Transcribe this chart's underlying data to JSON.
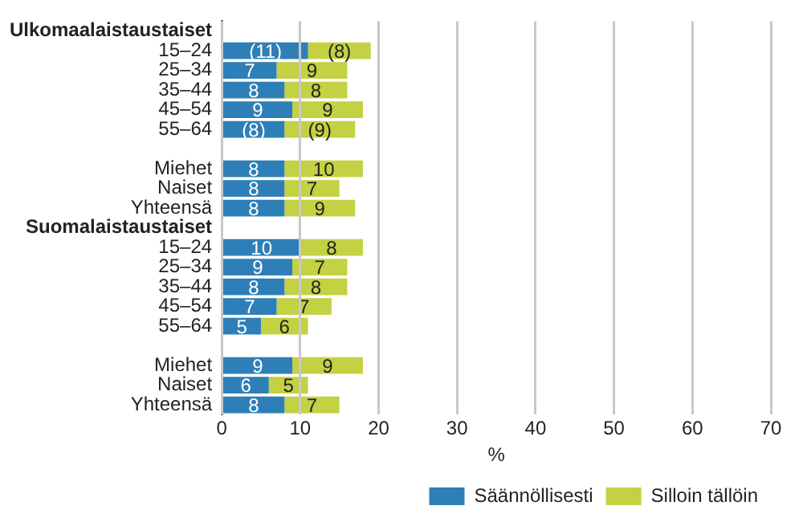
{
  "chart_data": {
    "type": "bar",
    "orientation": "horizontal",
    "stacked": true,
    "categories": [
      "Ulkomaalaistaustaiset",
      "15–24",
      "25–34",
      "35–44",
      "45–54",
      "55–64",
      null,
      "Miehet",
      "Naiset",
      "Yhteensä",
      "Suomalaistaustaiset",
      "15–24",
      "25–34",
      "35–44",
      "45–54",
      "55–64",
      null,
      "Miehet",
      "Naiset",
      "Yhteensä"
    ],
    "series": [
      {
        "name": "Säännöllisesti",
        "color": "#2e7fb8",
        "values": [
          null,
          11,
          7,
          8,
          9,
          8,
          null,
          8,
          8,
          8,
          null,
          10,
          9,
          8,
          7,
          5,
          null,
          9,
          6,
          8
        ],
        "value_labels": [
          null,
          "(11)",
          "7",
          "8",
          "9",
          "(8)",
          null,
          "8",
          "8",
          "8",
          null,
          "10",
          "9",
          "8",
          "7",
          "5",
          null,
          "9",
          "6",
          "8"
        ]
      },
      {
        "name": "Silloin tällöin",
        "color": "#c3d142",
        "values": [
          null,
          8,
          9,
          8,
          9,
          9,
          null,
          10,
          7,
          9,
          null,
          8,
          7,
          8,
          7,
          6,
          null,
          9,
          5,
          7
        ],
        "value_labels": [
          null,
          "(8)",
          "9",
          "8",
          "9",
          "(9)",
          null,
          "10",
          "7",
          "9",
          null,
          "8",
          "7",
          "8",
          "7",
          "6",
          null,
          "9",
          "5",
          "7"
        ]
      }
    ],
    "xlabel": "%",
    "xlim": [
      0,
      70
    ],
    "xticks": [
      0,
      10,
      20,
      30,
      40,
      50,
      60,
      70
    ],
    "grid": "x",
    "legend": "bottom"
  }
}
